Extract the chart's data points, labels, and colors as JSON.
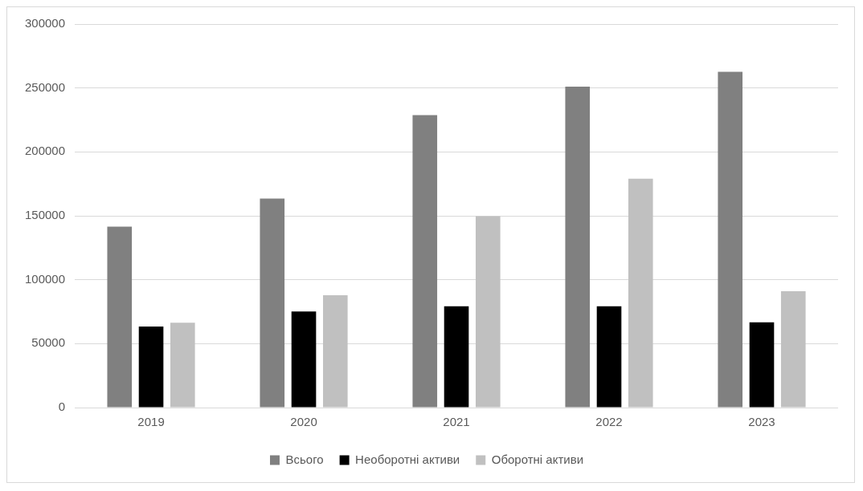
{
  "chart_data": {
    "type": "bar",
    "categories": [
      "2019",
      "2020",
      "2021",
      "2022",
      "2023"
    ],
    "series": [
      {
        "name": "Всього",
        "color": "#808080",
        "values": [
          141600,
          163500,
          228700,
          251000,
          262700
        ]
      },
      {
        "name": "Необоротні активи",
        "color": "#000000",
        "values": [
          63400,
          75200,
          79200,
          79200,
          66700
        ]
      },
      {
        "name": "Оборотні активи",
        "color": "#c0c0c0",
        "values": [
          66400,
          87900,
          149700,
          179000,
          91000
        ]
      }
    ],
    "ylim": [
      0,
      300000
    ],
    "yticks": [
      0,
      50000,
      100000,
      150000,
      200000,
      250000,
      300000
    ],
    "grid": "y",
    "legend": "bottom"
  }
}
